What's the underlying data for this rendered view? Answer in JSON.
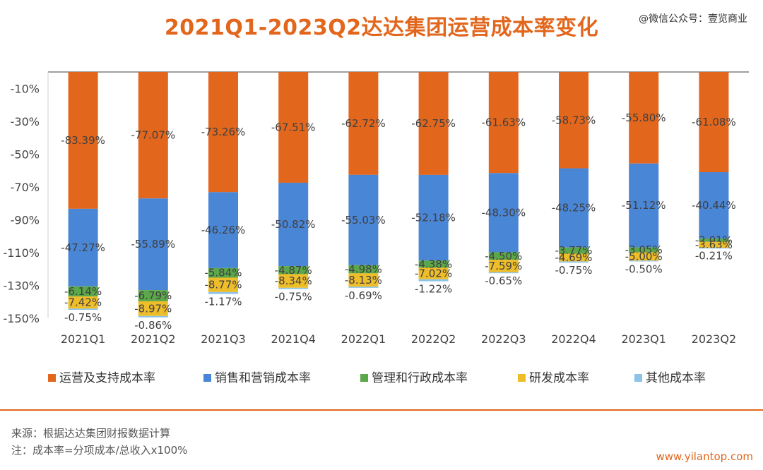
{
  "title": "2021Q1-2023Q2达达集团运营成本率变化",
  "wechat": "@微信公众号：壹览商业",
  "watermark": "壹览商业",
  "source": "来源：根据达达集团财报数据计算",
  "note": "注：成本率=分项成本/总收入x100%",
  "brand": "壹览商业",
  "website": "www.yilantop.com",
  "chart_data": {
    "type": "bar",
    "stacked": true,
    "direction": "negative",
    "categories": [
      "2021Q1",
      "2021Q2",
      "2021Q3",
      "2021Q4",
      "2022Q1",
      "2022Q2",
      "2022Q3",
      "2022Q4",
      "2023Q1",
      "2023Q2"
    ],
    "yticks": [
      "-10%",
      "-30%",
      "-50%",
      "-70%",
      "-90%",
      "-110%",
      "-130%",
      "-150%"
    ],
    "ylim": [
      -150,
      0
    ],
    "grid": false,
    "legend_position": "bottom",
    "series": [
      {
        "name": "运营及支持成本率",
        "color": "#e2661c",
        "values": [
          -83.39,
          -77.07,
          -73.26,
          -67.51,
          -62.72,
          -62.75,
          -61.63,
          -58.73,
          -55.8,
          -61.08
        ],
        "labels": [
          "-83.39%",
          "-77.07%",
          "-73.26%",
          "-67.51%",
          "-62.72%",
          "-62.75%",
          "-61.63%",
          "-58.73%",
          "-55.80%",
          "-61.08%"
        ]
      },
      {
        "name": "销售和营销成本率",
        "color": "#4a86d6",
        "values": [
          -47.27,
          -55.89,
          -46.26,
          -50.82,
          -55.03,
          -52.18,
          -48.3,
          -48.25,
          -51.12,
          -40.44
        ],
        "labels": [
          "-47.27%",
          "-55.89%",
          "-46.26%",
          "-50.82%",
          "-55.03%",
          "-52.18%",
          "-48.30%",
          "-48.25%",
          "-51.12%",
          "-40.44%"
        ]
      },
      {
        "name": "管理和行政成本率",
        "color": "#5ba84a",
        "values": [
          -6.14,
          -6.79,
          -5.84,
          -4.87,
          -4.98,
          -4.38,
          -4.5,
          -3.77,
          -3.05,
          -2.01
        ],
        "labels": [
          "-6.14%",
          "-6.79%",
          "-5.84%",
          "-4.87%",
          "-4.98%",
          "-4.38%",
          "-4.50%",
          "-3.77%",
          "-3.05%",
          "-2.01%"
        ]
      },
      {
        "name": "研发成本率",
        "color": "#eebd2a",
        "values": [
          -7.42,
          -8.97,
          -8.77,
          -8.34,
          -8.13,
          -7.02,
          -7.59,
          -4.69,
          -5.0,
          -3.63
        ],
        "labels": [
          "-7.42%",
          "-8.97%",
          "-8.77%",
          "-8.34%",
          "-8.13%",
          "-7.02%",
          "-7.59%",
          "-4.69%",
          "-5.00%",
          "-3.63%"
        ]
      },
      {
        "name": "其他成本率",
        "color": "#8cc4e8",
        "values": [
          -0.75,
          -0.86,
          -1.17,
          -0.75,
          -0.69,
          -1.22,
          -0.65,
          -0.75,
          -0.5,
          -0.21
        ],
        "labels": [
          "-0.75%",
          "-0.86%",
          "-1.17%",
          "-0.75%",
          "-0.69%",
          "-1.22%",
          "-0.65%",
          "-0.75%",
          "-0.50%",
          "-0.21%"
        ]
      }
    ]
  }
}
